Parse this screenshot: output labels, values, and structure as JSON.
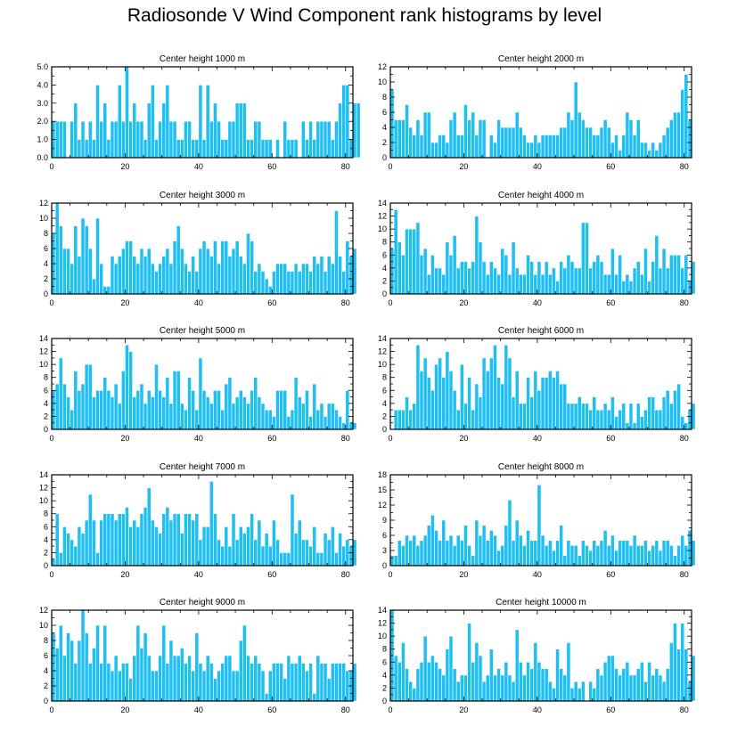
{
  "title": "Radiosonde V Wind Component rank histograms by level",
  "colors": {
    "bar": "#1fbff2",
    "frame": "#000000"
  },
  "chart_data": [
    {
      "type": "bar",
      "title": "Center height 1000 m",
      "xlim": [
        0,
        82
      ],
      "ylim": [
        0,
        5
      ],
      "xticks": [
        0,
        20,
        40,
        60,
        80
      ],
      "yticks": [
        "0.0",
        "1.0",
        "2.0",
        "3.0",
        "4.0",
        "5.0"
      ],
      "values": [
        2,
        2,
        2,
        2,
        0,
        2,
        3,
        1,
        2,
        1,
        2,
        1,
        4,
        2,
        3,
        1,
        2,
        2,
        4,
        2,
        5,
        2,
        3,
        2,
        2,
        1,
        3,
        4,
        1,
        2,
        3,
        4,
        2,
        2,
        1,
        1,
        2,
        2,
        1,
        1,
        4,
        1,
        4,
        2,
        3,
        2,
        1,
        1,
        2,
        2,
        3,
        3,
        3,
        1,
        1,
        2,
        2,
        1,
        1,
        1,
        0,
        1,
        0,
        2,
        1,
        1,
        1,
        0,
        2,
        1,
        2,
        1,
        2,
        2,
        2,
        2,
        1,
        2,
        3,
        4,
        4,
        1,
        3,
        3
      ]
    },
    {
      "type": "bar",
      "title": "Center height 2000 m",
      "xlim": [
        0,
        82
      ],
      "ylim": [
        0,
        12
      ],
      "xticks": [
        0,
        20,
        40,
        60,
        80
      ],
      "yticks": [
        "0",
        "2",
        "4",
        "6",
        "8",
        "10",
        "12"
      ],
      "values": [
        9,
        5,
        5,
        5,
        7,
        4,
        3,
        5,
        3,
        6,
        6,
        2,
        2,
        3,
        3,
        2,
        5,
        6,
        3,
        3,
        7,
        5,
        6,
        3,
        5,
        5,
        0,
        3,
        2,
        5,
        4,
        4,
        4,
        4,
        6,
        4,
        3,
        2,
        2,
        3,
        2,
        3,
        3,
        3,
        3,
        3,
        4,
        4,
        6,
        5,
        10,
        6,
        5,
        4,
        4,
        3,
        3,
        4,
        5,
        4,
        2,
        3,
        1,
        3,
        6,
        5,
        3,
        5,
        2,
        2,
        1,
        2,
        1,
        2,
        3,
        4,
        5,
        6,
        6,
        9,
        11,
        5
      ]
    },
    {
      "type": "bar",
      "title": "Center height 3000 m",
      "xlim": [
        0,
        82
      ],
      "ylim": [
        0,
        12
      ],
      "xticks": [
        0,
        20,
        40,
        60,
        80
      ],
      "yticks": [
        "0",
        "2",
        "4",
        "6",
        "8",
        "10",
        "12"
      ],
      "values": [
        8,
        12,
        9,
        6,
        6,
        4,
        9,
        5,
        10,
        9,
        6,
        2,
        10,
        4,
        1,
        1,
        5,
        4,
        5,
        6,
        7,
        7,
        5,
        4,
        6,
        5,
        6,
        4,
        3,
        4,
        5,
        6,
        4,
        7,
        9,
        6,
        4,
        3,
        5,
        3,
        6,
        7,
        6,
        5,
        7,
        4,
        7,
        7,
        5,
        6,
        7,
        5,
        4,
        8,
        7,
        3,
        4,
        3,
        2,
        1,
        3,
        4,
        4,
        4,
        3,
        3,
        4,
        3,
        4,
        4,
        3,
        5,
        4,
        5,
        3,
        5,
        4,
        11,
        5,
        3,
        7,
        5,
        6
      ]
    },
    {
      "type": "bar",
      "title": "Center height 4000 m",
      "xlim": [
        0,
        82
      ],
      "ylim": [
        0,
        14
      ],
      "xticks": [
        0,
        20,
        40,
        60,
        80
      ],
      "yticks": [
        "0",
        "2",
        "4",
        "6",
        "8",
        "10",
        "12",
        "14"
      ],
      "values": [
        7,
        13,
        8,
        6,
        10,
        10,
        10,
        11,
        6,
        7,
        3,
        6,
        4,
        4,
        3,
        8,
        6,
        9,
        4,
        5,
        5,
        4,
        5,
        12,
        8,
        5,
        3,
        5,
        4,
        3,
        7,
        6,
        3,
        8,
        4,
        3,
        3,
        6,
        5,
        3,
        5,
        3,
        5,
        3,
        4,
        2,
        5,
        4,
        6,
        5,
        4,
        4,
        11,
        11,
        4,
        5,
        6,
        5,
        3,
        3,
        7,
        3,
        6,
        2,
        3,
        2,
        4,
        5,
        3,
        7,
        2,
        5,
        9,
        4,
        7,
        4,
        6,
        6,
        6,
        4,
        6,
        2,
        5
      ]
    },
    {
      "type": "bar",
      "title": "Center height 5000 m",
      "xlim": [
        0,
        82
      ],
      "ylim": [
        0,
        14
      ],
      "xticks": [
        0,
        20,
        40,
        60,
        80
      ],
      "yticks": [
        "0",
        "2",
        "4",
        "6",
        "8",
        "10",
        "12",
        "14"
      ],
      "values": [
        6,
        7,
        11,
        7,
        5,
        3,
        9,
        6,
        7,
        10,
        10,
        5,
        6,
        6,
        8,
        6,
        5,
        7,
        4,
        9,
        13,
        12,
        5,
        6,
        7,
        4,
        6,
        5,
        10,
        6,
        5,
        8,
        4,
        9,
        9,
        4,
        3,
        8,
        6,
        3,
        11,
        6,
        5,
        4,
        6,
        6,
        3,
        7,
        8,
        4,
        5,
        6,
        5,
        4,
        6,
        8,
        5,
        4,
        3,
        3,
        2,
        6,
        6,
        6,
        2,
        3,
        8,
        5,
        4,
        6,
        2,
        7,
        3,
        4,
        2,
        4,
        4,
        3,
        2,
        1,
        6,
        1,
        1
      ]
    },
    {
      "type": "bar",
      "title": "Center height 6000 m",
      "xlim": [
        0,
        82
      ],
      "ylim": [
        0,
        14
      ],
      "xticks": [
        0,
        20,
        40,
        60,
        80
      ],
      "yticks": [
        "0",
        "2",
        "4",
        "6",
        "8",
        "10",
        "12",
        "14"
      ],
      "values": [
        0,
        3,
        3,
        3,
        5,
        3,
        4,
        13,
        9,
        11,
        8,
        6,
        10,
        11,
        8,
        12,
        9,
        6,
        3,
        10,
        4,
        8,
        3,
        7,
        5,
        11,
        9,
        11,
        13,
        8,
        7,
        13,
        11,
        5,
        9,
        4,
        4,
        8,
        5,
        9,
        6,
        8,
        8,
        9,
        8,
        9,
        7,
        7,
        4,
        4,
        4,
        5,
        4,
        4,
        3,
        5,
        3,
        3,
        4,
        3,
        5,
        2,
        3,
        4,
        1,
        4,
        1,
        4,
        2,
        3,
        5,
        5,
        3,
        3,
        5,
        6,
        4,
        6,
        7,
        2,
        1,
        3,
        4
      ]
    },
    {
      "type": "bar",
      "title": "Center height 7000 m",
      "xlim": [
        0,
        82
      ],
      "ylim": [
        0,
        14
      ],
      "xticks": [
        0,
        20,
        40,
        60,
        80
      ],
      "yticks": [
        "0",
        "2",
        "4",
        "6",
        "8",
        "10",
        "12",
        "14"
      ],
      "values": [
        1,
        8,
        2,
        6,
        5,
        4,
        3,
        6,
        5,
        7,
        11,
        7,
        2,
        7,
        8,
        8,
        8,
        7,
        8,
        8,
        9,
        6,
        7,
        6,
        8,
        9,
        12,
        7,
        6,
        5,
        8,
        9,
        7,
        8,
        8,
        5,
        8,
        8,
        7,
        8,
        4,
        6,
        6,
        13,
        8,
        4,
        3,
        6,
        3,
        8,
        4,
        6,
        5,
        6,
        8,
        4,
        7,
        3,
        5,
        3,
        7,
        4,
        2,
        2,
        2,
        11,
        5,
        7,
        4,
        4,
        3,
        6,
        2,
        2,
        5,
        4,
        6,
        2,
        5,
        3,
        4,
        3,
        4
      ]
    },
    {
      "type": "bar",
      "title": "Center height 8000 m",
      "xlim": [
        0,
        82
      ],
      "ylim": [
        0,
        18
      ],
      "xticks": [
        0,
        20,
        40,
        60,
        80
      ],
      "yticks": [
        "0",
        "3",
        "6",
        "9",
        "12",
        "15",
        "18"
      ],
      "values": [
        2,
        2,
        5,
        4,
        6,
        5,
        6,
        4,
        5,
        6,
        8,
        10,
        7,
        5,
        9,
        5,
        6,
        4,
        6,
        5,
        8,
        4,
        2,
        9,
        6,
        8,
        5,
        7,
        6,
        3,
        4,
        8,
        13,
        5,
        9,
        6,
        4,
        7,
        5,
        5,
        16,
        6,
        4,
        5,
        3,
        5,
        8,
        2,
        5,
        4,
        4,
        2,
        5,
        4,
        3,
        5,
        4,
        5,
        7,
        4,
        6,
        3,
        5,
        5,
        5,
        4,
        6,
        4,
        4,
        5,
        3,
        4,
        5,
        3,
        5,
        5,
        4,
        2,
        4,
        6,
        4,
        7,
        5
      ]
    },
    {
      "type": "bar",
      "title": "Center height 9000 m",
      "xlim": [
        0,
        82
      ],
      "ylim": [
        0,
        12
      ],
      "xticks": [
        0,
        20,
        40,
        60,
        80
      ],
      "yticks": [
        "0",
        "2",
        "4",
        "6",
        "8",
        "10",
        "12"
      ],
      "values": [
        9,
        7,
        10,
        6,
        9,
        8,
        5,
        8,
        12,
        9,
        5,
        7,
        10,
        5,
        10,
        5,
        4,
        6,
        4,
        5,
        5,
        3,
        6,
        10,
        7,
        9,
        6,
        4,
        4,
        6,
        10,
        5,
        8,
        6,
        6,
        7,
        5,
        6,
        4,
        9,
        5,
        4,
        6,
        5,
        3,
        4,
        5,
        6,
        6,
        4,
        4,
        8,
        10,
        6,
        5,
        6,
        5,
        4,
        1,
        4,
        5,
        5,
        5,
        3,
        6,
        5,
        5,
        6,
        5,
        4,
        5,
        1,
        6,
        5,
        5,
        3,
        5,
        5,
        5,
        5,
        4,
        4,
        5
      ]
    },
    {
      "type": "bar",
      "title": "Center height 10000 m",
      "xlim": [
        0,
        82
      ],
      "ylim": [
        0,
        14
      ],
      "xticks": [
        0,
        20,
        40,
        60,
        80
      ],
      "yticks": [
        "0",
        "2",
        "4",
        "6",
        "8",
        "10",
        "12",
        "14"
      ],
      "values": [
        14,
        7,
        6,
        9,
        5,
        3,
        2,
        5,
        6,
        10,
        6,
        7,
        6,
        5,
        4,
        8,
        10,
        5,
        3,
        4,
        4,
        12,
        6,
        9,
        7,
        3,
        4,
        8,
        4,
        5,
        4,
        6,
        4,
        3,
        11,
        6,
        4,
        6,
        5,
        9,
        6,
        5,
        5,
        3,
        2,
        8,
        5,
        4,
        9,
        2,
        3,
        2,
        3,
        0,
        3,
        2,
        5,
        4,
        6,
        7,
        7,
        5,
        4,
        5,
        6,
        4,
        4,
        5,
        6,
        3,
        6,
        4,
        5,
        4,
        3,
        5,
        9,
        12,
        8,
        12,
        8,
        3,
        7
      ]
    }
  ]
}
